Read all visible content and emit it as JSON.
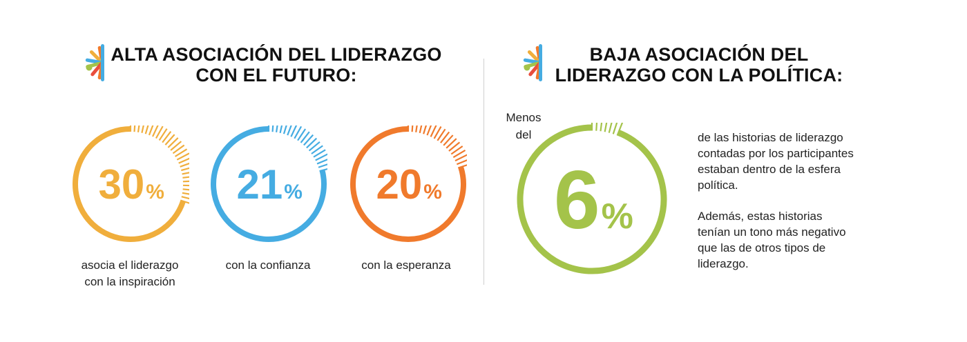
{
  "left_section": {
    "heading_lines": [
      "ALTA ASOCIACIÓN DEL LIDERAZGO",
      "CON EL FUTURO:"
    ],
    "stats": [
      {
        "value": "30",
        "unit": "%",
        "color": "#f0ae3c",
        "caption_lines": [
          "asocia el liderazgo",
          "con la inspiración"
        ],
        "percent": 30
      },
      {
        "value": "21",
        "unit": "%",
        "color": "#45ace2",
        "caption_lines": [
          "con la confianza"
        ],
        "percent": 21
      },
      {
        "value": "20",
        "unit": "%",
        "color": "#f07a2c",
        "caption_lines": [
          "con la esperanza"
        ],
        "percent": 20
      }
    ]
  },
  "right_section": {
    "heading_lines": [
      "BAJA ASOCIACIÓN DEL",
      "LIDERAZGO CON LA POLÍTICA:"
    ],
    "prefix_lines": [
      "Menos",
      "del"
    ],
    "stat": {
      "value": "6",
      "unit": "%",
      "color": "#a4c34a",
      "percent": 6
    },
    "paragraph1_lines": [
      "de las historias de liderazgo",
      "contadas por los participantes",
      "estaban dentro de la esfera",
      "política."
    ],
    "paragraph2_lines": [
      "Además, estas historias",
      "tenían un tono más negativo",
      "que las de otros tipos de",
      "liderazgo."
    ]
  },
  "logo_colors": [
    "#f07a2c",
    "#f0ae3c",
    "#45ace2",
    "#a4c34a",
    "#e94e3d"
  ]
}
